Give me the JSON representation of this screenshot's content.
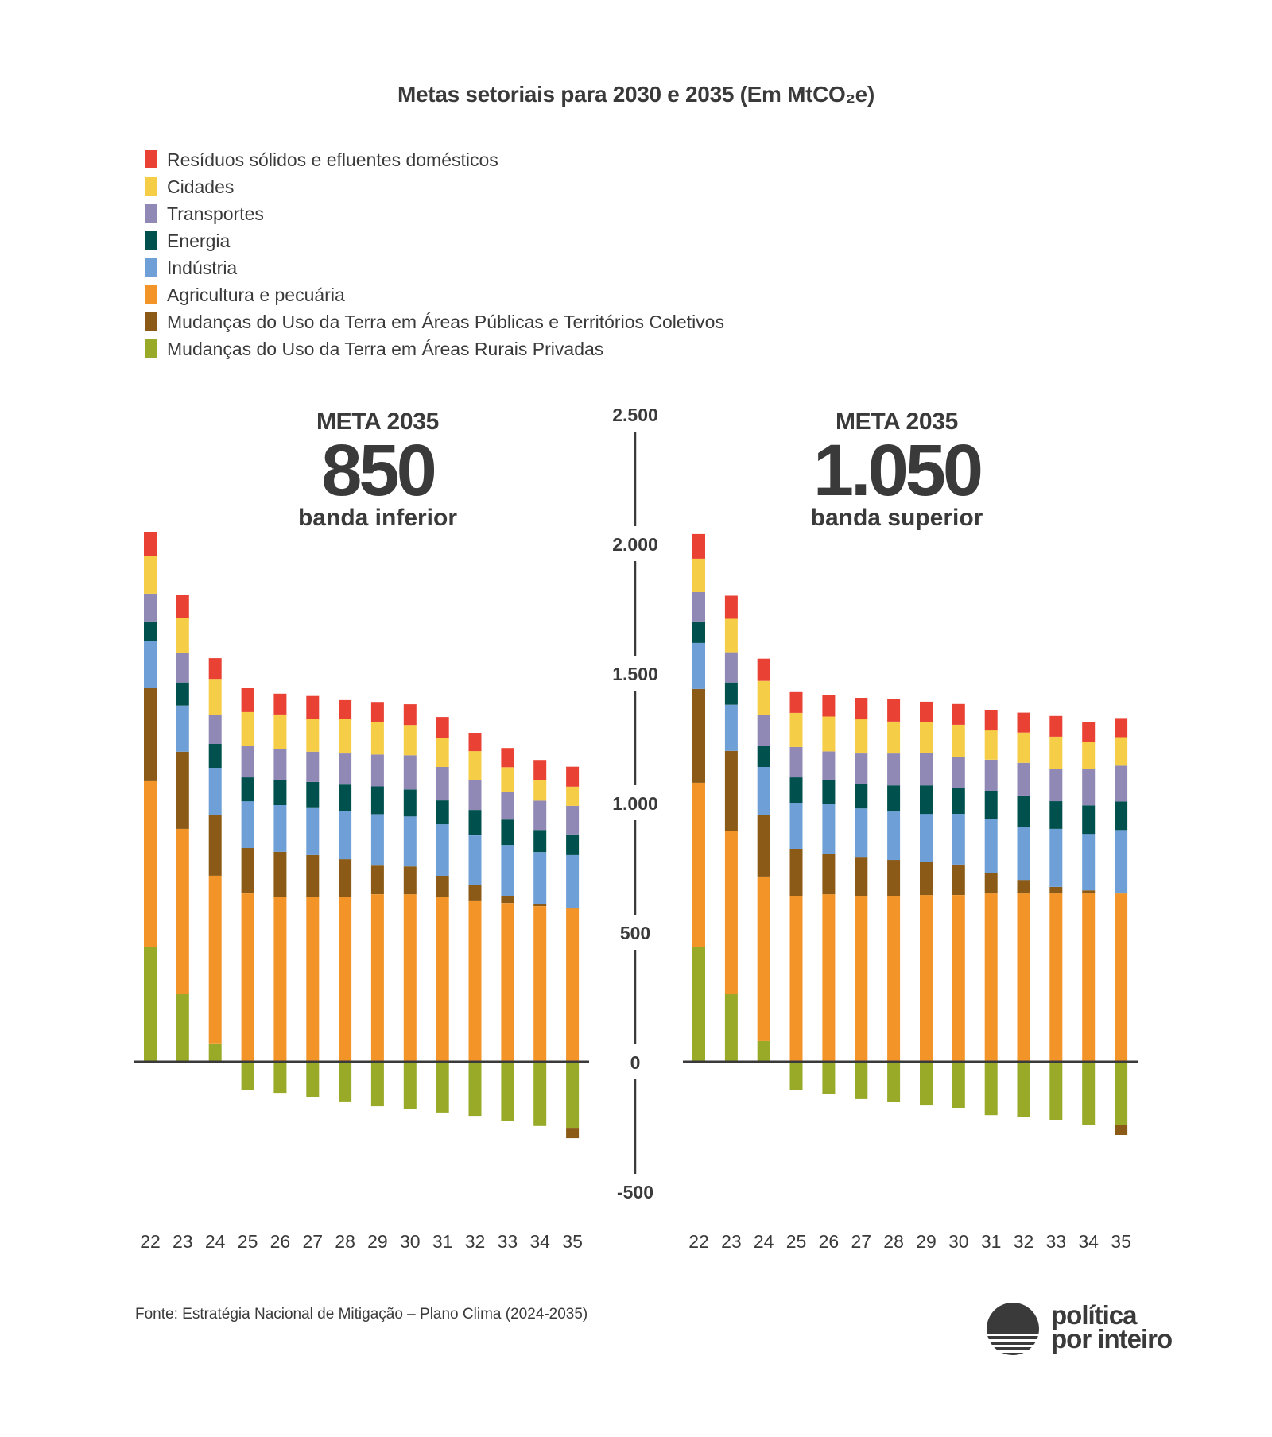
{
  "chart_data": {
    "type": "bar",
    "stacked": true,
    "title": "Metas setoriais para 2030 e 2035 (Em MtCO₂e)",
    "ylim": [
      -500,
      2500
    ],
    "yticks": [
      2500,
      2000,
      1500,
      1000,
      500,
      0,
      -500
    ],
    "ytick_labels": [
      "2.500",
      "2.000",
      "1.500",
      "1.000",
      "500",
      "0",
      "-500"
    ],
    "grid": false,
    "legend_position": "top-left",
    "legend": [
      {
        "key": "residuos",
        "label": "Resíduos sólidos e efluentes domésticos",
        "color": "#E94235"
      },
      {
        "key": "cidades",
        "label": "Cidades",
        "color": "#F6CD46"
      },
      {
        "key": "transportes",
        "label": "Transportes",
        "color": "#9088B5"
      },
      {
        "key": "energia",
        "label": "Energia",
        "color": "#00504D"
      },
      {
        "key": "industria",
        "label": "Indústria",
        "color": "#6E9FD6"
      },
      {
        "key": "agricultura",
        "label": "Agricultura e pecuária",
        "color": "#F29427"
      },
      {
        "key": "uso_terra_publicas",
        "label": "Mudanças do Uso da Terra em Áreas Públicas e Territórios Coletivos",
        "color": "#8B5A16"
      },
      {
        "key": "uso_terra_rurais",
        "label": "Mudanças do Uso da Terra em Áreas Rurais Privadas",
        "color": "#98AA28"
      }
    ],
    "categories": [
      "22",
      "23",
      "24",
      "25",
      "26",
      "27",
      "28",
      "29",
      "30",
      "31",
      "32",
      "33",
      "34",
      "35"
    ],
    "panels": [
      {
        "heading": "META 2035",
        "target": "850",
        "band": "banda inferior",
        "series": [
          {
            "key": "uso_terra_rurais",
            "name": "Mudanças do Uso da Terra em Áreas Rurais Privadas",
            "values": [
              442,
              261,
              71,
              -110,
              -120,
              -135,
              -153,
              -172,
              -181,
              -196,
              -209,
              -227,
              -248,
              -255
            ]
          },
          {
            "key": "agricultura",
            "name": "Agricultura e pecuária",
            "values": [
              641,
              638,
              647,
              650,
              638,
              638,
              638,
              647,
              647,
              638,
              623,
              613,
              601,
              592
            ]
          },
          {
            "key": "uso_terra_publicas",
            "name": "Mudanças do Uso da Terra em Áreas Públicas e Territórios Coletivos",
            "values": [
              359,
              298,
              236,
              175,
              172,
              160,
              144,
              113,
              107,
              80,
              58,
              28,
              9,
              -40
            ]
          },
          {
            "key": "industria",
            "name": "Indústria",
            "values": [
              181,
              178,
              181,
              181,
              181,
              184,
              187,
              196,
              193,
              199,
              193,
              196,
              199,
              206
            ]
          },
          {
            "key": "energia",
            "name": "Energia",
            "values": [
              77,
              89,
              92,
              92,
              95,
              98,
              101,
              107,
              104,
              92,
              98,
              98,
              86,
              80
            ]
          },
          {
            "key": "transportes",
            "name": "Transportes",
            "values": [
              107,
              113,
              113,
              120,
              120,
              117,
              120,
              123,
              132,
              129,
              117,
              107,
              113,
              110
            ]
          },
          {
            "key": "cidades",
            "name": "Cidades",
            "values": [
              147,
              135,
              138,
              132,
              135,
              126,
              132,
              126,
              117,
              113,
              110,
              95,
              80,
              74
            ]
          },
          {
            "key": "residuos",
            "name": "Resíduos sólidos e efluentes domésticos",
            "values": [
              92,
              89,
              80,
              92,
              80,
              89,
              74,
              77,
              80,
              80,
              71,
              74,
              77,
              77
            ]
          }
        ]
      },
      {
        "heading": "META 2035",
        "target": "1.050",
        "band": "banda superior",
        "series": [
          {
            "key": "uso_terra_rurais",
            "name": "Mudanças do Uso da Terra em Áreas Rurais Privadas",
            "values": [
              442,
              264,
              80,
              -110,
              -123,
              -144,
              -156,
              -166,
              -178,
              -206,
              -212,
              -224,
              -245,
              -245
            ]
          },
          {
            "key": "agricultura",
            "name": "Agricultura e pecuária",
            "values": [
              635,
              626,
              635,
              641,
              647,
              641,
              641,
              644,
              644,
              650,
              650,
              650,
              650,
              650
            ]
          },
          {
            "key": "uso_terra_publicas",
            "name": "Mudanças do Uso da Terra em Áreas Públicas e Territórios Coletivos",
            "values": [
              362,
              310,
              236,
              181,
              156,
              150,
              138,
              126,
              117,
              80,
              52,
              25,
              12,
              -37
            ]
          },
          {
            "key": "industria",
            "name": "Indústria",
            "values": [
              178,
              178,
              187,
              178,
              193,
              187,
              187,
              187,
              196,
              206,
              206,
              224,
              218,
              245
            ]
          },
          {
            "key": "energia",
            "name": "Energia",
            "values": [
              83,
              86,
              80,
              98,
              92,
              95,
              101,
              110,
              101,
              110,
              120,
              107,
              110,
              110
            ]
          },
          {
            "key": "transportes",
            "name": "Transportes",
            "values": [
              113,
              117,
              120,
              117,
              110,
              117,
              123,
              126,
              120,
              120,
              126,
              126,
              141,
              138
            ]
          },
          {
            "key": "cidades",
            "name": "Cidades",
            "values": [
              129,
              129,
              132,
              132,
              135,
              132,
              123,
              120,
              123,
              113,
              117,
              123,
              104,
              110
            ]
          },
          {
            "key": "residuos",
            "name": "Resíduos sólidos e efluentes domésticos",
            "values": [
              95,
              89,
              86,
              80,
              83,
              83,
              86,
              77,
              80,
              80,
              77,
              80,
              77,
              74
            ]
          }
        ]
      }
    ],
    "source": "Fonte: Estratégia Nacional de Mitigação – Plano Clima (2024-2035)"
  },
  "colors": {
    "text": "#3A3A3A",
    "axis": "#3A3A3A",
    "background": "#FFFFFF"
  },
  "brand": {
    "line1": "política",
    "line2": "por inteiro",
    "icon": "sunset-logo-icon"
  }
}
